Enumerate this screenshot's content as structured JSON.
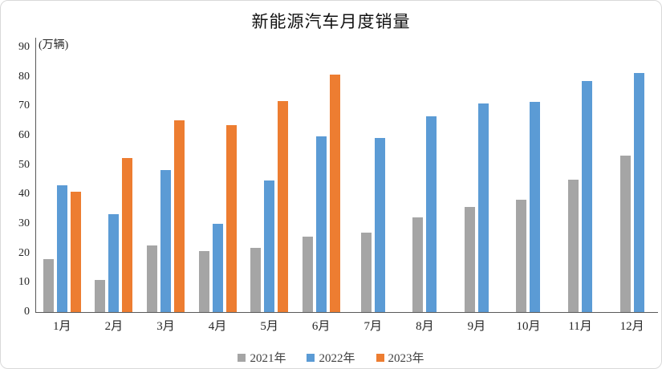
{
  "colors": {
    "axis": "#595959",
    "frame": "#d9d9d9",
    "tick_text": "#262626",
    "legend_text": "#404040"
  },
  "chart_data": {
    "type": "bar",
    "title": "新能源汽车月度销量",
    "unit_label": "(万辆)",
    "categories": [
      "1月",
      "2月",
      "3月",
      "4月",
      "5月",
      "6月",
      "7月",
      "8月",
      "9月",
      "10月",
      "11月",
      "12月"
    ],
    "series": [
      {
        "name": "2021年",
        "color": "#A5A5A5",
        "values": [
          17.9,
          11.0,
          22.6,
          20.6,
          21.7,
          25.6,
          27.1,
          32.1,
          35.7,
          38.3,
          45.0,
          53.1
        ]
      },
      {
        "name": "2022年",
        "color": "#5B9BD5",
        "values": [
          43.1,
          33.4,
          48.4,
          29.9,
          44.7,
          59.6,
          59.3,
          66.6,
          70.8,
          71.4,
          78.6,
          81.4
        ]
      },
      {
        "name": "2023年",
        "color": "#ED7D31",
        "values": [
          40.8,
          52.5,
          65.3,
          63.6,
          71.7,
          80.6,
          null,
          null,
          null,
          null,
          null,
          null
        ]
      }
    ],
    "xlabel": "",
    "ylabel": "(万辆)",
    "ylim": [
      0,
      90
    ],
    "yticks": [
      0,
      10,
      20,
      30,
      40,
      50,
      60,
      70,
      80,
      90
    ],
    "grid": false,
    "legend_position": "bottom"
  }
}
